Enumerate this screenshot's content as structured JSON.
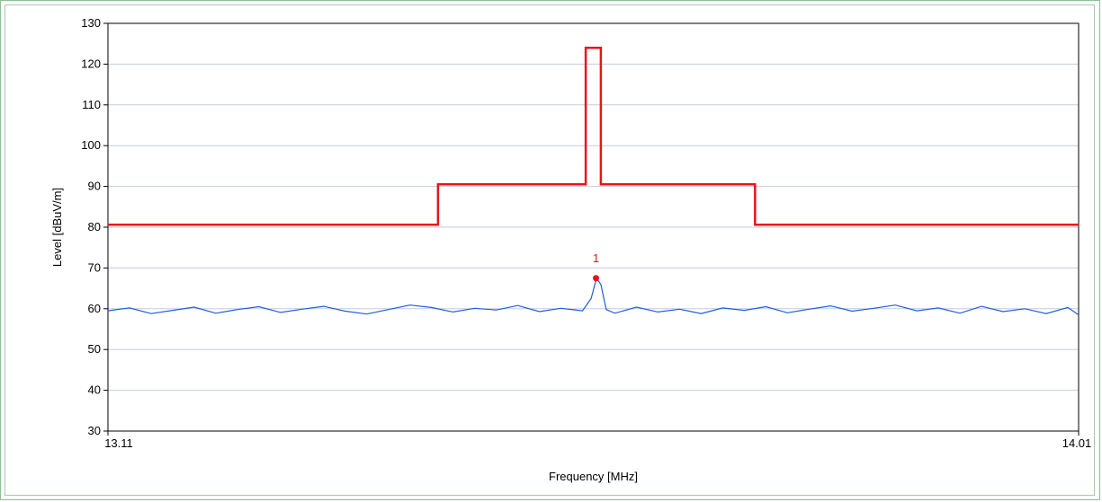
{
  "colors": {
    "limit_line": "#e8141c",
    "trace": "#1f5ed8",
    "grid": "#c3cbe0",
    "marker": "#e8141c"
  },
  "chart_data": {
    "type": "line",
    "title": "",
    "xlabel": "Frequency [MHz]",
    "ylabel": "Level [dBuV/m]",
    "xlim": [
      13.11,
      14.01
    ],
    "ylim": [
      30,
      130
    ],
    "x_tick_labels": [
      "13.11",
      "14.01"
    ],
    "y_ticks": [
      30,
      40,
      50,
      60,
      70,
      80,
      90,
      100,
      110,
      120,
      130
    ],
    "grid": "horizontal",
    "series": [
      {
        "kind": "limit",
        "x": [
          13.11,
          13.416,
          13.416,
          13.553,
          13.553,
          13.567,
          13.567,
          13.71,
          13.71,
          14.01
        ],
        "y": [
          80.6,
          80.6,
          90.5,
          90.5,
          124.0,
          124.0,
          90.5,
          90.5,
          80.6,
          80.6
        ]
      },
      {
        "kind": "measurement",
        "baseline": 59.5,
        "x": [
          13.11,
          13.13,
          13.15,
          13.17,
          13.19,
          13.21,
          13.23,
          13.25,
          13.27,
          13.29,
          13.31,
          13.33,
          13.35,
          13.37,
          13.39,
          13.41,
          13.43,
          13.45,
          13.47,
          13.49,
          13.51,
          13.53,
          13.55,
          13.558,
          13.563,
          13.567,
          13.572,
          13.58,
          13.6,
          13.62,
          13.64,
          13.66,
          13.68,
          13.7,
          13.72,
          13.74,
          13.76,
          13.78,
          13.8,
          13.82,
          13.84,
          13.86,
          13.88,
          13.9,
          13.92,
          13.94,
          13.96,
          13.98,
          14.0,
          14.01
        ],
        "y": [
          59.5,
          60.2,
          58.8,
          59.6,
          60.4,
          58.9,
          59.8,
          60.5,
          59.1,
          59.9,
          60.6,
          59.4,
          58.7,
          59.8,
          60.9,
          60.3,
          59.2,
          60.1,
          59.7,
          60.8,
          59.3,
          60.1,
          59.5,
          62.5,
          67.5,
          66.0,
          59.8,
          58.9,
          60.4,
          59.2,
          59.9,
          58.8,
          60.2,
          59.6,
          60.5,
          59.0,
          59.9,
          60.7,
          59.4,
          60.1,
          60.9,
          59.5,
          60.2,
          58.9,
          60.6,
          59.3,
          60.0,
          58.8,
          60.3,
          58.5
        ]
      }
    ],
    "markers": [
      {
        "label": "1",
        "x": 13.5625,
        "y": 67.5
      }
    ]
  }
}
